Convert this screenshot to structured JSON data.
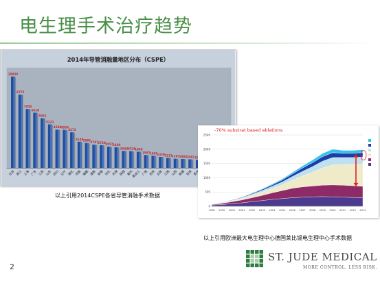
{
  "slide": {
    "title": "电生理手术治疗趋势",
    "page_number": "2",
    "caption_left": "以上引用2014CSPE各省导管消融手术数据",
    "caption_right": "以上引用欧洲最大电生理中心德国莱比锡电生理中心手术数据"
  },
  "logo": {
    "text": "ST. JUDE MEDICAL",
    "tagline": "MORE CONTROL. LESS RISK.",
    "mark_color": "#2f7d3f"
  },
  "chart_data": [
    {
      "type": "bar",
      "title": "2014年导管消融量地区分布（CSPE）",
      "categories": [
        "北京",
        "浙江",
        "上海",
        "广东",
        "江苏",
        "山东",
        "四川",
        "辽宁",
        "湖北",
        "河南",
        "福建",
        "湖南",
        "安徽",
        "河北",
        "天津",
        "陕西",
        "重庆",
        "黑龙江",
        "广西",
        "吉林",
        "云南",
        "江西",
        "山西",
        "新疆",
        "甘肃",
        "贵州",
        "内蒙古",
        "宁夏",
        "海南",
        "青海"
      ],
      "values": [
        10938,
        8775,
        7050,
        6618,
        5951,
        5221,
        4588,
        4554,
        4272,
        3149,
        2991,
        2787,
        2728,
        2557,
        2480,
        2048,
        2024,
        1949,
        1557,
        1465,
        1328,
        1211,
        1107,
        1084,
        1042,
        974,
        665,
        492,
        297,
        242
      ],
      "labels": [
        "10938",
        "8775",
        "7050",
        "6618",
        "5951",
        "5221",
        "4588",
        "4554",
        "4272",
        "3149",
        "2991",
        "2787",
        "2728",
        "2557",
        "2480",
        "2048",
        "2024",
        "1949",
        "1557",
        "1465",
        "1328",
        "1211",
        "1107",
        "1084",
        "1042",
        "974",
        "665",
        "492",
        "297",
        "242"
      ],
      "ylim": [
        0,
        12000
      ],
      "colors": {
        "bar": "#1f4e9e",
        "label": "#c0272d",
        "background": "#c7d0dd",
        "plot": "#a9b3c0"
      }
    },
    {
      "type": "area",
      "title": "-70% substrat based ablations",
      "x": [
        "1998",
        "1999",
        "2000",
        "2001",
        "2002",
        "2003",
        "2004",
        "2005",
        "2006",
        "2007",
        "2008",
        "2009",
        "2010",
        "2011",
        "2012",
        "2013"
      ],
      "yticks": [
        "0",
        "500",
        "1000",
        "1500",
        "2000",
        "2500"
      ],
      "ylim": [
        0,
        2500
      ],
      "series": [
        {
          "color": "#4b3a8e",
          "values": [
            40,
            60,
            90,
            120,
            160,
            200,
            240,
            270,
            300,
            320,
            330,
            340,
            330,
            320,
            310,
            300
          ]
        },
        {
          "color": "#8e2a66",
          "values": [
            20,
            40,
            70,
            100,
            140,
            180,
            230,
            280,
            330,
            360,
            380,
            400,
            420,
            420,
            410,
            400
          ]
        },
        {
          "color": "#efeac7",
          "values": [
            10,
            20,
            30,
            50,
            80,
            110,
            150,
            200,
            280,
            380,
            480,
            600,
            700,
            720,
            740,
            780
          ]
        },
        {
          "color": "#bfe0ee",
          "values": [
            5,
            10,
            15,
            25,
            40,
            60,
            80,
            100,
            130,
            160,
            200,
            240,
            260,
            250,
            250,
            250
          ]
        },
        {
          "color": "#1a3fa8",
          "values": [
            5,
            10,
            15,
            20,
            30,
            40,
            50,
            70,
            90,
            120,
            140,
            160,
            170,
            150,
            150,
            150
          ]
        },
        {
          "color": "#35c2ea",
          "values": [
            0,
            5,
            5,
            10,
            15,
            20,
            30,
            40,
            50,
            70,
            90,
            110,
            120,
            100,
            100,
            100
          ]
        }
      ],
      "annotation_color": "#e02020"
    }
  ]
}
